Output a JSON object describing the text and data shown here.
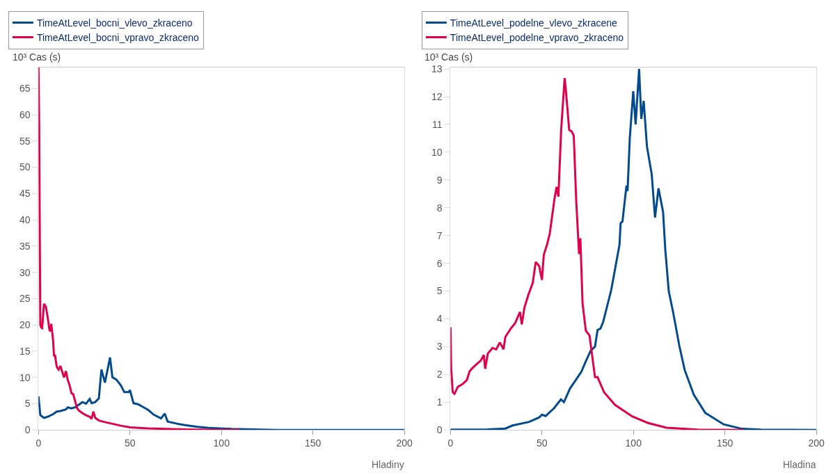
{
  "chart_data": [
    {
      "type": "line",
      "xlabel": "Hladiny",
      "ylabel": "10³ Cas (s)",
      "xlim": [
        0,
        200
      ],
      "xticks": [
        0,
        50,
        100,
        150,
        200
      ],
      "ylim": [
        0,
        69
      ],
      "yticks": [
        0,
        5,
        10,
        15,
        20,
        25,
        30,
        35,
        40,
        45,
        50,
        55,
        60,
        65
      ],
      "legend": "top left",
      "marker": "none",
      "line_style": "solid",
      "series": [
        {
          "name": "TimeAtLevel_bocni_vlevo_zkraceno",
          "color": "#004a8d",
          "x": [
            0,
            1,
            3,
            5,
            8,
            10,
            12,
            15,
            16,
            18,
            20,
            22,
            24,
            26,
            28,
            29,
            31,
            33,
            34.4,
            36.3,
            39.1,
            40.4,
            42.5,
            45,
            46.9,
            49.4,
            50,
            51.9,
            54.4,
            58,
            60,
            63,
            67,
            69,
            70.6,
            75.6,
            80.6,
            87,
            93,
            105.6,
            118,
            130,
            150,
            200
          ],
          "values": [
            6.4,
            2.8,
            2.3,
            2.5,
            3,
            3.5,
            3.6,
            3.9,
            4.3,
            4.1,
            4.3,
            4.8,
            5.3,
            5.0,
            5.9,
            5.1,
            5.3,
            6.0,
            11.5,
            9.0,
            13.8,
            10.0,
            9.6,
            8.5,
            7.2,
            7.2,
            7.6,
            5.1,
            4.9,
            4.2,
            3.8,
            2.9,
            2.2,
            3.1,
            1.6,
            1.2,
            0.9,
            0.6,
            0.4,
            0.2,
            0.1,
            0,
            0,
            0
          ]
        },
        {
          "name": "TimeAtLevel_bocni_vpravo_zkraceno",
          "color": "#e0004d",
          "x": [
            0,
            0.4,
            0.7,
            1,
            1.5,
            2,
            3,
            4,
            5,
            6,
            6.5,
            7,
            8,
            8.5,
            9,
            10,
            11,
            12,
            13,
            14,
            15,
            16,
            17,
            18,
            19,
            20,
            21,
            22,
            24,
            26,
            28,
            29,
            30,
            31,
            33,
            35,
            40,
            45,
            50,
            60,
            70,
            80,
            100,
            110
          ],
          "values": [
            69,
            58,
            37,
            20,
            19.5,
            19.4,
            24,
            23.5,
            21.5,
            19,
            18.8,
            20.2,
            17,
            14,
            14.3,
            12,
            11.5,
            12.2,
            11,
            10,
            11.2,
            9.5,
            8.5,
            7,
            6.8,
            5.5,
            4.2,
            3.7,
            3.2,
            2.8,
            2.5,
            2.1,
            3.5,
            2.3,
            1.8,
            1.6,
            1.2,
            0.8,
            0.5,
            0.3,
            0.2,
            0.1,
            0,
            0
          ]
        }
      ]
    },
    {
      "type": "line",
      "xlabel": "Hladina",
      "ylabel": "10³ Cas (s)",
      "xlim": [
        0,
        200
      ],
      "xticks": [
        0,
        50,
        100,
        150,
        200
      ],
      "ylim": [
        0,
        13.05
      ],
      "yticks": [
        0,
        1,
        2,
        3,
        4,
        5,
        6,
        7,
        8,
        9,
        10,
        11,
        12,
        13
      ],
      "legend": "top left",
      "marker": "none",
      "line_style": "solid",
      "series": [
        {
          "name": "TimeAtLevel_podelne_vlevo_zkracene",
          "color": "#004a8d",
          "x": [
            0,
            20,
            30,
            34,
            43,
            48.5,
            50,
            52,
            56.6,
            60.4,
            62,
            65.4,
            68,
            71.6,
            73.5,
            76.6,
            79,
            80.4,
            82,
            83.5,
            86,
            87.9,
            90.4,
            92.4,
            93,
            94,
            96.2,
            96.8,
            98,
            99.9,
            101.2,
            103.1,
            104.3,
            105.6,
            107.4,
            110,
            111.8,
            113.7,
            116.2,
            117.4,
            119.3,
            121.8,
            125,
            128,
            133,
            139.3,
            149.3,
            159.4,
            170,
            200
          ],
          "values": [
            0.01,
            0.02,
            0.05,
            0.16,
            0.29,
            0.45,
            0.55,
            0.5,
            0.78,
            1.1,
            1.0,
            1.5,
            1.75,
            2.1,
            2.4,
            2.85,
            3.0,
            3.6,
            3.65,
            3.9,
            4.55,
            5.05,
            5.95,
            6.67,
            7.45,
            7.5,
            8.8,
            8.6,
            10.5,
            12.2,
            11,
            13.0,
            11.2,
            11.85,
            10.2,
            9.2,
            7.65,
            8.7,
            7.85,
            6.5,
            5.0,
            4.2,
            3.06,
            2.16,
            1.27,
            0.61,
            0.2,
            0.04,
            0.01,
            0
          ]
        },
        {
          "name": "TimeAtLevel_podelne_vpravo_zkraceno",
          "color": "#e0004d",
          "x": [
            0,
            0.4,
            1.25,
            2.2,
            4,
            6.6,
            9,
            10.4,
            11.6,
            14,
            16.6,
            18.2,
            19,
            20.4,
            23,
            25,
            27,
            29,
            30,
            33,
            35.4,
            38,
            39,
            40.4,
            42.5,
            45,
            46.6,
            48.5,
            50,
            51,
            52.9,
            54.3,
            56.8,
            58,
            59,
            60.5,
            62.4,
            63,
            64.9,
            66.2,
            67.4,
            68.7,
            69.9,
            70.3,
            71,
            72.2,
            74,
            76,
            79,
            80.4,
            84,
            90,
            99.3,
            108,
            118,
            135,
            160
          ],
          "values": [
            3.7,
            2.2,
            1.36,
            1.3,
            1.55,
            1.65,
            1.8,
            2.1,
            2.2,
            2.35,
            2.5,
            2.7,
            2.2,
            2.75,
            2.95,
            2.9,
            3.15,
            2.9,
            3.35,
            3.65,
            3.85,
            4.25,
            3.8,
            4.4,
            4.85,
            5.3,
            6.05,
            5.9,
            5.4,
            6.3,
            6.7,
            7.08,
            8.3,
            8.75,
            8.4,
            10.8,
            12.67,
            12.3,
            10.8,
            10.75,
            10.6,
            8.3,
            6.8,
            6.33,
            6.9,
            4.55,
            3.57,
            3.4,
            1.9,
            1.9,
            1.35,
            0.9,
            0.49,
            0.25,
            0.08,
            0.01,
            0
          ]
        }
      ]
    }
  ]
}
